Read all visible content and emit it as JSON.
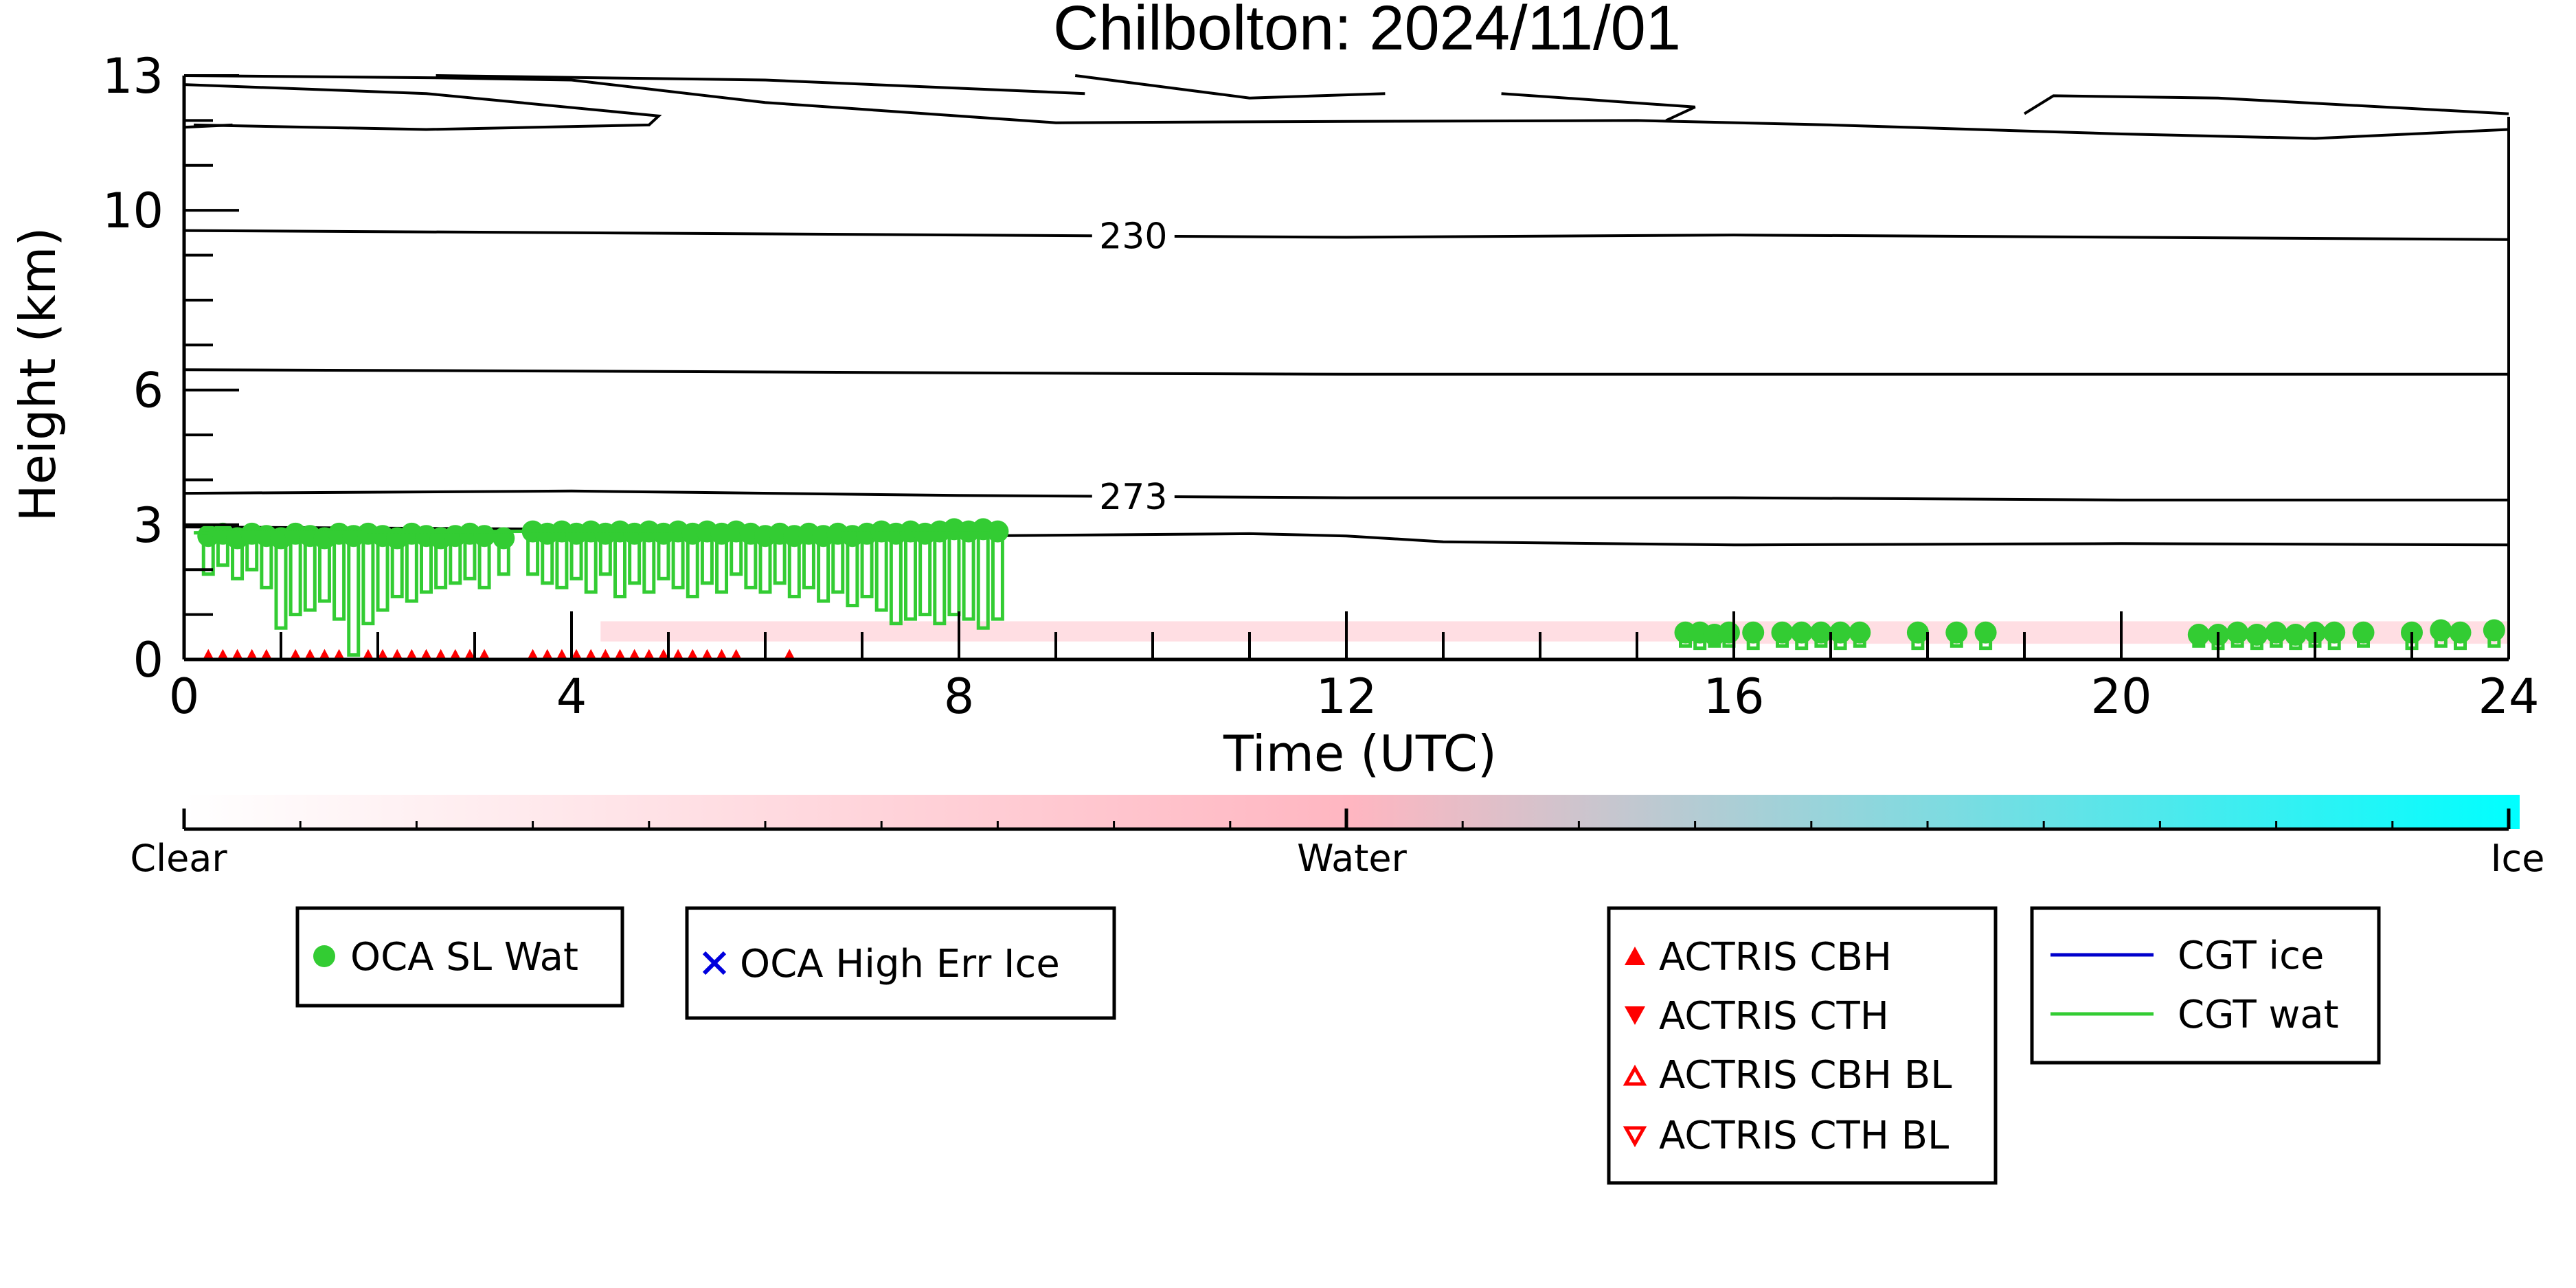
{
  "chart_data": {
    "type": "scatter",
    "title": "Chilbolton: 2024/11/01",
    "xlabel": "Time (UTC)",
    "ylabel": "Height (km)",
    "xlim": [
      0,
      24
    ],
    "ylim": [
      0,
      13
    ],
    "xticks": [
      "0",
      "4",
      "8",
      "12",
      "16",
      "20",
      "24"
    ],
    "xtick_values": [
      0,
      4,
      8,
      12,
      16,
      20,
      24
    ],
    "yticks": [
      "0",
      "3",
      "6",
      "10",
      "13"
    ],
    "ytick_values": [
      0,
      3,
      6,
      10,
      13
    ],
    "colorbar": {
      "labels": [
        "Clear",
        "Water",
        "Ice"
      ],
      "colors": [
        "#ffffff",
        "#ffb6c1",
        "#00ffff"
      ]
    },
    "contours": [
      {
        "label": "230",
        "label_x": 9.8,
        "points": [
          [
            0,
            9.55
          ],
          [
            4,
            9.5
          ],
          [
            8,
            9.45
          ],
          [
            12,
            9.4
          ],
          [
            16,
            9.45
          ],
          [
            20,
            9.4
          ],
          [
            24,
            9.35
          ]
        ]
      },
      {
        "label": "",
        "points": [
          [
            0,
            6.45
          ],
          [
            4,
            6.42
          ],
          [
            8,
            6.38
          ],
          [
            12,
            6.35
          ],
          [
            16,
            6.35
          ],
          [
            20,
            6.35
          ],
          [
            24,
            6.35
          ]
        ]
      },
      {
        "label": "273",
        "label_x": 9.8,
        "points": [
          [
            0,
            3.7
          ],
          [
            4,
            3.75
          ],
          [
            8,
            3.65
          ],
          [
            12,
            3.6
          ],
          [
            16,
            3.6
          ],
          [
            20,
            3.55
          ],
          [
            24,
            3.55
          ]
        ]
      },
      {
        "label": "",
        "points": [
          [
            0,
            2.95
          ],
          [
            4,
            2.9
          ],
          [
            6,
            2.78
          ],
          [
            8,
            2.75
          ],
          [
            11,
            2.8
          ],
          [
            12,
            2.75
          ],
          [
            13,
            2.62
          ],
          [
            16,
            2.55
          ],
          [
            20,
            2.58
          ],
          [
            24,
            2.55
          ]
        ]
      },
      {
        "label": "",
        "points": [
          [
            0.1,
            11.9
          ],
          [
            2.5,
            11.8
          ],
          [
            4.8,
            11.9
          ],
          [
            4.9,
            12.1
          ],
          [
            2.5,
            12.6
          ],
          [
            0,
            12.8
          ]
        ]
      },
      {
        "label": "",
        "points": [
          [
            0,
            13.0
          ],
          [
            2.6,
            12.95
          ],
          [
            4,
            12.9
          ],
          [
            6,
            12.4
          ],
          [
            9,
            11.95
          ],
          [
            12,
            11.98
          ],
          [
            15,
            12.0
          ],
          [
            17,
            11.9
          ],
          [
            20,
            11.7
          ],
          [
            22,
            11.6
          ],
          [
            24,
            11.8
          ]
        ]
      },
      {
        "label": "",
        "points": [
          [
            2.6,
            13.0
          ],
          [
            6,
            12.9
          ],
          [
            9.3,
            12.6
          ]
        ]
      },
      {
        "label": "",
        "points": [
          [
            9.2,
            13.0
          ],
          [
            11,
            12.5
          ],
          [
            12.4,
            12.6
          ]
        ]
      },
      {
        "label": "",
        "points": [
          [
            13.6,
            12.6
          ],
          [
            15.6,
            12.3
          ],
          [
            15.3,
            12.0
          ]
        ]
      },
      {
        "label": "",
        "points": [
          [
            19,
            12.15
          ],
          [
            19.3,
            12.55
          ],
          [
            21,
            12.5
          ],
          [
            24,
            12.15
          ]
        ]
      },
      {
        "label": "",
        "points": [
          [
            0,
            11.85
          ],
          [
            0.5,
            11.9
          ]
        ]
      }
    ],
    "background_water_band": [
      {
        "x_start": 4.3,
        "x_end": 15.5,
        "y_low": 0.4,
        "y_high": 0.85
      },
      {
        "x_start": 15.5,
        "x_end": 24,
        "y_low": 0.35,
        "y_high": 0.85
      }
    ],
    "series": [
      {
        "name": "OCA SL Wat",
        "marker": "circle",
        "color": "#33cc33",
        "points": [
          {
            "x": 0.25,
            "top": 2.75,
            "base": 1.9
          },
          {
            "x": 0.4,
            "top": 2.8,
            "base": 2.1
          },
          {
            "x": 0.55,
            "top": 2.7,
            "base": 1.8
          },
          {
            "x": 0.7,
            "top": 2.8,
            "base": 2.0
          },
          {
            "x": 0.85,
            "top": 2.75,
            "base": 1.6
          },
          {
            "x": 1.0,
            "top": 2.7,
            "base": 0.7
          },
          {
            "x": 1.15,
            "top": 2.8,
            "base": 1.0
          },
          {
            "x": 1.3,
            "top": 2.75,
            "base": 1.1
          },
          {
            "x": 1.45,
            "top": 2.7,
            "base": 1.3
          },
          {
            "x": 1.6,
            "top": 2.8,
            "base": 0.9
          },
          {
            "x": 1.75,
            "top": 2.75,
            "base": 0.1
          },
          {
            "x": 1.9,
            "top": 2.8,
            "base": 0.8
          },
          {
            "x": 2.05,
            "top": 2.75,
            "base": 1.1
          },
          {
            "x": 2.2,
            "top": 2.7,
            "base": 1.4
          },
          {
            "x": 2.35,
            "top": 2.8,
            "base": 1.3
          },
          {
            "x": 2.5,
            "top": 2.75,
            "base": 1.5
          },
          {
            "x": 2.65,
            "top": 2.7,
            "base": 1.6
          },
          {
            "x": 2.8,
            "top": 2.75,
            "base": 1.7
          },
          {
            "x": 2.95,
            "top": 2.8,
            "base": 1.8
          },
          {
            "x": 3.1,
            "top": 2.75,
            "base": 1.6
          },
          {
            "x": 3.3,
            "top": 2.7,
            "base": 1.9
          },
          {
            "x": 3.6,
            "top": 2.85,
            "base": 1.9
          },
          {
            "x": 3.75,
            "top": 2.8,
            "base": 1.7
          },
          {
            "x": 3.9,
            "top": 2.85,
            "base": 1.6
          },
          {
            "x": 4.05,
            "top": 2.8,
            "base": 1.8
          },
          {
            "x": 4.2,
            "top": 2.85,
            "base": 1.5
          },
          {
            "x": 4.35,
            "top": 2.8,
            "base": 1.9
          },
          {
            "x": 4.5,
            "top": 2.85,
            "base": 1.4
          },
          {
            "x": 4.65,
            "top": 2.8,
            "base": 1.7
          },
          {
            "x": 4.8,
            "top": 2.85,
            "base": 1.5
          },
          {
            "x": 4.95,
            "top": 2.8,
            "base": 1.8
          },
          {
            "x": 5.1,
            "top": 2.85,
            "base": 1.6
          },
          {
            "x": 5.25,
            "top": 2.8,
            "base": 1.4
          },
          {
            "x": 5.4,
            "top": 2.85,
            "base": 1.7
          },
          {
            "x": 5.55,
            "top": 2.8,
            "base": 1.5
          },
          {
            "x": 5.7,
            "top": 2.85,
            "base": 1.9
          },
          {
            "x": 5.85,
            "top": 2.8,
            "base": 1.6
          },
          {
            "x": 6.0,
            "top": 2.75,
            "base": 1.5
          },
          {
            "x": 6.15,
            "top": 2.8,
            "base": 1.7
          },
          {
            "x": 6.3,
            "top": 2.75,
            "base": 1.4
          },
          {
            "x": 6.45,
            "top": 2.8,
            "base": 1.6
          },
          {
            "x": 6.6,
            "top": 2.75,
            "base": 1.3
          },
          {
            "x": 6.75,
            "top": 2.8,
            "base": 1.5
          },
          {
            "x": 6.9,
            "top": 2.75,
            "base": 1.2
          },
          {
            "x": 7.05,
            "top": 2.8,
            "base": 1.4
          },
          {
            "x": 7.2,
            "top": 2.85,
            "base": 1.1
          },
          {
            "x": 7.35,
            "top": 2.8,
            "base": 0.8
          },
          {
            "x": 7.5,
            "top": 2.85,
            "base": 0.9
          },
          {
            "x": 7.65,
            "top": 2.8,
            "base": 1.0
          },
          {
            "x": 7.8,
            "top": 2.85,
            "base": 0.8
          },
          {
            "x": 7.95,
            "top": 2.9,
            "base": 1.0
          },
          {
            "x": 8.1,
            "top": 2.85,
            "base": 0.9
          },
          {
            "x": 8.25,
            "top": 2.9,
            "base": 0.7
          },
          {
            "x": 8.4,
            "top": 2.85,
            "base": 0.9
          },
          {
            "x": 15.5,
            "top": 0.6,
            "base": 0.3
          },
          {
            "x": 15.65,
            "top": 0.6,
            "base": 0.25
          },
          {
            "x": 15.8,
            "top": 0.55,
            "base": 0.3
          },
          {
            "x": 15.95,
            "top": 0.6,
            "base": 0.3
          },
          {
            "x": 16.2,
            "top": 0.6,
            "base": 0.25
          },
          {
            "x": 16.5,
            "top": 0.6,
            "base": 0.3
          },
          {
            "x": 16.7,
            "top": 0.6,
            "base": 0.25
          },
          {
            "x": 16.9,
            "top": 0.6,
            "base": 0.3
          },
          {
            "x": 17.1,
            "top": 0.6,
            "base": 0.25
          },
          {
            "x": 17.3,
            "top": 0.6,
            "base": 0.3
          },
          {
            "x": 17.9,
            "top": 0.6,
            "base": 0.25
          },
          {
            "x": 18.3,
            "top": 0.6,
            "base": 0.3
          },
          {
            "x": 18.6,
            "top": 0.6,
            "base": 0.25
          },
          {
            "x": 20.8,
            "top": 0.55,
            "base": 0.3
          },
          {
            "x": 21.0,
            "top": 0.55,
            "base": 0.25
          },
          {
            "x": 21.2,
            "top": 0.6,
            "base": 0.3
          },
          {
            "x": 21.4,
            "top": 0.55,
            "base": 0.25
          },
          {
            "x": 21.6,
            "top": 0.6,
            "base": 0.3
          },
          {
            "x": 21.8,
            "top": 0.55,
            "base": 0.25
          },
          {
            "x": 22.0,
            "top": 0.6,
            "base": 0.3
          },
          {
            "x": 22.2,
            "top": 0.6,
            "base": 0.25
          },
          {
            "x": 22.5,
            "top": 0.6,
            "base": 0.3
          },
          {
            "x": 23.0,
            "top": 0.6,
            "base": 0.25
          },
          {
            "x": 23.3,
            "top": 0.65,
            "base": 0.3
          },
          {
            "x": 23.5,
            "top": 0.6,
            "base": 0.25
          },
          {
            "x": 23.85,
            "top": 0.65,
            "base": 0.3
          }
        ]
      },
      {
        "name": "OCA High Err Ice",
        "marker": "x",
        "color": "#0000dd",
        "points": []
      },
      {
        "name": "ACTRIS CBH",
        "marker": "triangle-up",
        "color": "#ff0000",
        "points": [
          {
            "x": 0.25,
            "y": 0.05
          },
          {
            "x": 0.4,
            "y": 0.05
          },
          {
            "x": 0.55,
            "y": 0.05
          },
          {
            "x": 0.7,
            "y": 0.05
          },
          {
            "x": 0.85,
            "y": 0.05
          },
          {
            "x": 1.15,
            "y": 0.05
          },
          {
            "x": 1.3,
            "y": 0.05
          },
          {
            "x": 1.45,
            "y": 0.05
          },
          {
            "x": 1.6,
            "y": 0.05
          },
          {
            "x": 1.9,
            "y": 0.05
          },
          {
            "x": 2.05,
            "y": 0.05
          },
          {
            "x": 2.2,
            "y": 0.05
          },
          {
            "x": 2.35,
            "y": 0.05
          },
          {
            "x": 2.5,
            "y": 0.05
          },
          {
            "x": 2.65,
            "y": 0.05
          },
          {
            "x": 2.8,
            "y": 0.05
          },
          {
            "x": 2.95,
            "y": 0.05
          },
          {
            "x": 3.1,
            "y": 0.05
          },
          {
            "x": 3.6,
            "y": 0.05
          },
          {
            "x": 3.75,
            "y": 0.05
          },
          {
            "x": 3.9,
            "y": 0.05
          },
          {
            "x": 4.05,
            "y": 0.05
          },
          {
            "x": 4.2,
            "y": 0.05
          },
          {
            "x": 4.35,
            "y": 0.05
          },
          {
            "x": 4.5,
            "y": 0.05
          },
          {
            "x": 4.65,
            "y": 0.05
          },
          {
            "x": 4.8,
            "y": 0.05
          },
          {
            "x": 4.95,
            "y": 0.05
          },
          {
            "x": 5.1,
            "y": 0.05
          },
          {
            "x": 5.25,
            "y": 0.05
          },
          {
            "x": 5.4,
            "y": 0.05
          },
          {
            "x": 5.55,
            "y": 0.05
          },
          {
            "x": 5.7,
            "y": 0.05
          },
          {
            "x": 6.25,
            "y": 0.05
          }
        ]
      },
      {
        "name": "ACTRIS CTH",
        "marker": "triangle-down",
        "color": "#ff0000",
        "points": []
      },
      {
        "name": "ACTRIS CBH BL",
        "marker": "triangle-up-open",
        "color": "#ff0000",
        "points": []
      },
      {
        "name": "ACTRIS CTH BL",
        "marker": "triangle-down-open",
        "color": "#ff0000",
        "points": []
      },
      {
        "name": "CGT ice",
        "marker": "line",
        "color": "#0000cc",
        "points": []
      },
      {
        "name": "CGT wat",
        "marker": "line",
        "color": "#33cc33",
        "points": [
          {
            "x": 0.1,
            "y": 2.82
          },
          {
            "x": 8.5,
            "y": 2.9
          }
        ]
      }
    ],
    "legends": [
      {
        "entries": [
          "OCA SL Wat"
        ]
      },
      {
        "entries": [
          "OCA High Err Ice"
        ]
      },
      {
        "entries": [
          "ACTRIS CBH",
          "ACTRIS CTH",
          "ACTRIS CBH BL",
          "ACTRIS CTH BL"
        ]
      },
      {
        "entries": [
          "CGT ice",
          "CGT wat"
        ]
      }
    ],
    "grid": false
  }
}
